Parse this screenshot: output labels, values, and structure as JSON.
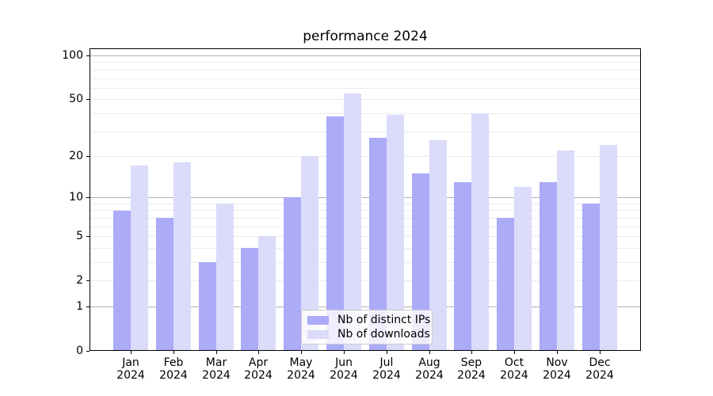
{
  "chart_data": {
    "type": "bar",
    "title": "performance 2024",
    "categories": [
      "Jan",
      "Feb",
      "Mar",
      "Apr",
      "May",
      "Jun",
      "Jul",
      "Aug",
      "Sep",
      "Oct",
      "Nov",
      "Dec"
    ],
    "year": "2024",
    "series": [
      {
        "name": "Nb of distinct IPs",
        "color": "#ababf8",
        "values": [
          8,
          7,
          3,
          4,
          10,
          38,
          27,
          15,
          13,
          7,
          13,
          9
        ]
      },
      {
        "name": "Nb of downloads",
        "color": "#dbdbfa",
        "values": [
          17,
          18,
          9,
          5,
          20,
          55,
          39,
          26,
          40,
          12,
          22,
          24
        ]
      }
    ],
    "yticks": [
      0,
      1,
      2,
      5,
      10,
      20,
      50,
      100
    ],
    "grid_major_values": [
      1,
      10,
      100
    ],
    "grid_minor_values": [
      2,
      3,
      4,
      5,
      6,
      7,
      8,
      9,
      20,
      30,
      40,
      50,
      60,
      70,
      80,
      90
    ],
    "ylim": [
      0,
      112
    ],
    "scale": "log1p",
    "grid": "both",
    "legend_position": "lower center",
    "colors": {
      "grid_major": "#b2b2b2",
      "grid_minor": "#ebebeb"
    }
  }
}
